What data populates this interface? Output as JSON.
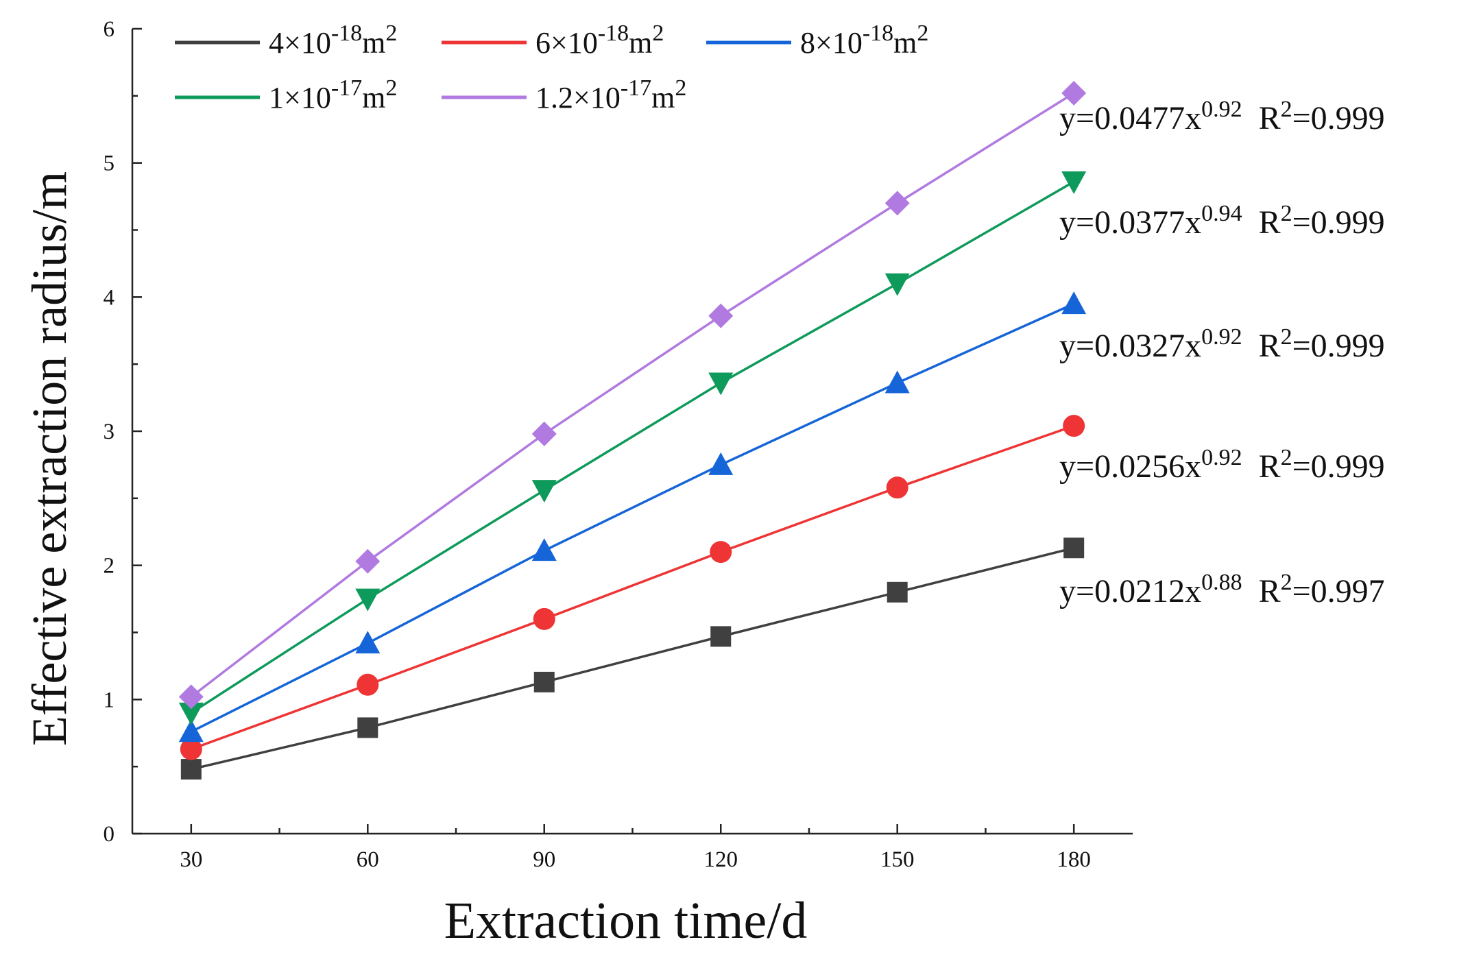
{
  "chart_data": {
    "type": "line",
    "title": "",
    "xlabel": "Extraction time/d",
    "ylabel": "Effective extraction radius/m",
    "x": [
      30,
      60,
      90,
      120,
      150,
      180
    ],
    "x_ticks": [
      "30",
      "60",
      "90",
      "120",
      "150",
      "180"
    ],
    "y_ticks": [
      "0",
      "1",
      "2",
      "3",
      "4",
      "5",
      "6"
    ],
    "xlim": [
      20,
      190
    ],
    "ylim": [
      0,
      6
    ],
    "legend_position": "top-left",
    "series": [
      {
        "name": "4×10-18m2",
        "legend": {
          "mantissa": "4×10",
          "exp": "-18",
          "unit": "m",
          "unit_exp": "2"
        },
        "color": "#404040",
        "marker": "square",
        "values": [
          0.48,
          0.79,
          1.13,
          1.47,
          1.8,
          2.13
        ],
        "fit": {
          "prefix": "y=0.0212x",
          "exp": "0.88",
          "r_label": "R",
          "r_exp": "2",
          "r_value": "=0.997"
        }
      },
      {
        "name": "6×10-18m2",
        "legend": {
          "mantissa": "6×10",
          "exp": "-18",
          "unit": "m",
          "unit_exp": "2"
        },
        "color": "#ee3434",
        "marker": "circle",
        "values": [
          0.63,
          1.11,
          1.6,
          2.1,
          2.58,
          3.04
        ],
        "fit": {
          "prefix": "y=0.0256x",
          "exp": "0.92",
          "r_label": "R",
          "r_exp": "2",
          "r_value": "=0.999"
        }
      },
      {
        "name": "8×10-18m2",
        "legend": {
          "mantissa": "8×10",
          "exp": "-18",
          "unit": "m",
          "unit_exp": "2"
        },
        "color": "#1565d8",
        "marker": "triangle-up",
        "values": [
          0.76,
          1.42,
          2.11,
          2.75,
          3.36,
          3.95
        ],
        "fit": {
          "prefix": "y=0.0327x",
          "exp": "0.92",
          "r_label": "R",
          "r_exp": "2",
          "r_value": "=0.999"
        }
      },
      {
        "name": "1×10-17m2",
        "legend": {
          "mantissa": "1×10",
          "exp": "-17",
          "unit": "m",
          "unit_exp": "2"
        },
        "color": "#0e9a5a",
        "marker": "triangle-down",
        "values": [
          0.9,
          1.75,
          2.56,
          3.36,
          4.1,
          4.86
        ],
        "fit": {
          "prefix": "y=0.0377x",
          "exp": "0.94",
          "r_label": "R",
          "r_exp": "2",
          "r_value": "=0.999"
        }
      },
      {
        "name": "1.2×10-17m2",
        "legend": {
          "mantissa": "1.2×10",
          "exp": "-17",
          "unit": "m",
          "unit_exp": "2"
        },
        "color": "#b07ae0",
        "marker": "diamond",
        "values": [
          1.02,
          2.03,
          2.98,
          3.86,
          4.7,
          5.52
        ],
        "fit": {
          "prefix": "y=0.0477x",
          "exp": "0.92",
          "r_label": "R",
          "r_exp": "2",
          "r_value": "=0.999"
        }
      }
    ]
  }
}
